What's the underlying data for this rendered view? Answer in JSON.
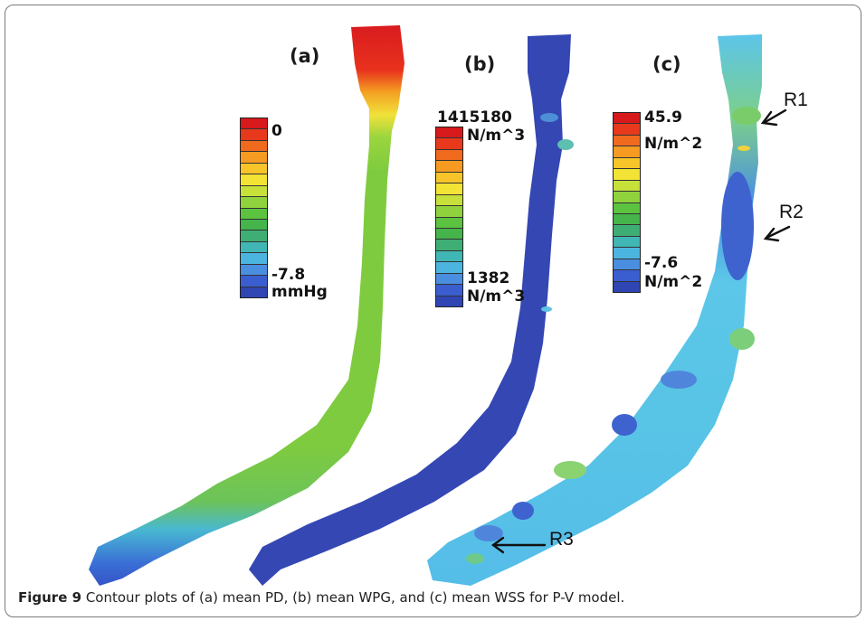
{
  "panels": [
    {
      "label": "(a)",
      "colorbar": {
        "max": "0",
        "min": "-7.8",
        "unit_min": "mmHg"
      }
    },
    {
      "label": "(b)",
      "colorbar": {
        "max": "1415180",
        "unit_max": "N/m^3",
        "min": "1382",
        "unit_min": "N/m^3"
      }
    },
    {
      "label": "(c)",
      "colorbar": {
        "max": "45.9",
        "unit_max": "N/m^2",
        "min": "-7.6",
        "unit_min": "N/m^2"
      }
    }
  ],
  "regions": [
    "R1",
    "R2",
    "R3"
  ],
  "colormap": [
    "#d7191c",
    "#e8391c",
    "#f06a1e",
    "#f59b22",
    "#f7c52a",
    "#f2e334",
    "#c7e03a",
    "#8fd23e",
    "#5cc341",
    "#45b44a",
    "#3fae75",
    "#41b7b5",
    "#4cb5df",
    "#4a8ee0",
    "#3a5ed0",
    "#2f45b4"
  ],
  "caption": {
    "figure": "Figure 9",
    "text": "Contour plots of (a) mean PD, (b) mean WPG, and (c) mean WSS for P-V model."
  }
}
